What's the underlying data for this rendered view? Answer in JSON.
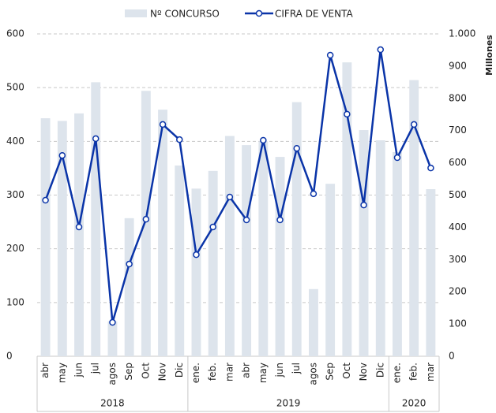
{
  "chart_data": {
    "type": "bar-line",
    "category_groups": [
      {
        "label": "2018",
        "categories": [
          "abr",
          "may",
          "jun",
          "jul",
          "agos",
          "Sep",
          "Oct",
          "Nov",
          "Dic"
        ]
      },
      {
        "label": "2019",
        "categories": [
          "ene.",
          "feb.",
          "mar",
          "abr",
          "may",
          "jun",
          "jul",
          "agos",
          "Sep",
          "Oct",
          "Nov",
          "Dic"
        ]
      },
      {
        "label": "2020",
        "categories": [
          "ene.",
          "feb.",
          "mar"
        ]
      }
    ],
    "series": [
      {
        "name": "Nº CONCURSO",
        "type": "bar",
        "color": "#dde4ec",
        "axis": "y",
        "values": [
          443,
          438,
          452,
          510,
          65,
          257,
          494,
          459,
          355,
          312,
          345,
          410,
          393,
          400,
          371,
          473,
          125,
          321,
          547,
          421,
          402,
          380,
          514,
          311
        ]
      },
      {
        "name": "CIFRA DE VENTA",
        "type": "line",
        "color": "#0a34a8",
        "axis": "y2",
        "values": [
          484,
          623,
          401,
          675,
          105,
          286,
          425,
          719,
          672,
          315,
          401,
          494,
          423,
          670,
          423,
          645,
          504,
          934,
          751,
          469,
          951,
          616,
          719,
          584
        ]
      }
    ],
    "ylim": [
      0,
      600
    ],
    "yticks": [
      0,
      100,
      200,
      300,
      400,
      500,
      600
    ],
    "y2lim": [
      0,
      1000
    ],
    "y2ticks": [
      0,
      100,
      200,
      300,
      400,
      500,
      600,
      700,
      800,
      900,
      {
        "value": 1000,
        "label": "1.000"
      }
    ],
    "y2label": "Millones",
    "grid": true,
    "legend": "top"
  }
}
